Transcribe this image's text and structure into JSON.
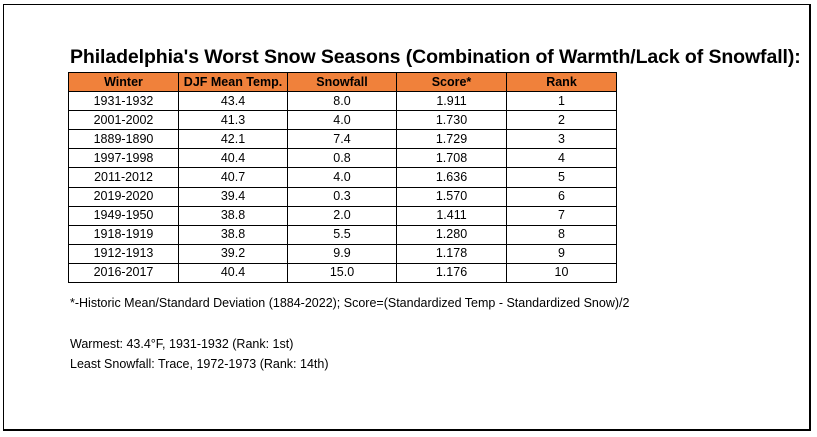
{
  "title": "Philadelphia's Worst Snow Seasons (Combination of Warmth/Lack of Snowfall):",
  "table": {
    "headers": [
      "Winter",
      "DJF Mean Temp.",
      "Snowfall",
      "Score*",
      "Rank"
    ],
    "rows": [
      [
        "1931-1932",
        "43.4",
        "8.0",
        "1.911",
        "1"
      ],
      [
        "2001-2002",
        "41.3",
        "4.0",
        "1.730",
        "2"
      ],
      [
        "1889-1890",
        "42.1",
        "7.4",
        "1.729",
        "3"
      ],
      [
        "1997-1998",
        "40.4",
        "0.8",
        "1.708",
        "4"
      ],
      [
        "2011-2012",
        "40.7",
        "4.0",
        "1.636",
        "5"
      ],
      [
        "2019-2020",
        "39.4",
        "0.3",
        "1.570",
        "6"
      ],
      [
        "1949-1950",
        "38.8",
        "2.0",
        "1.411",
        "7"
      ],
      [
        "1918-1919",
        "38.8",
        "5.5",
        "1.280",
        "8"
      ],
      [
        "1912-1913",
        "39.2",
        "9.9",
        "1.178",
        "9"
      ],
      [
        "2016-2017",
        "40.4",
        "15.0",
        "1.176",
        "10"
      ]
    ]
  },
  "footnote": "*-Historic Mean/Standard Deviation (1884-2022); Score=(Standardized Temp - Standardized Snow)/2",
  "warmest": "Warmest: 43.4°F, 1931-1932 (Rank: 1st)",
  "least_snowfall": "Least Snowfall: Trace, 1972-1973 (Rank: 14th)",
  "colors": {
    "header_fill": "#f0813b",
    "border": "#000000",
    "background": "#ffffff"
  }
}
